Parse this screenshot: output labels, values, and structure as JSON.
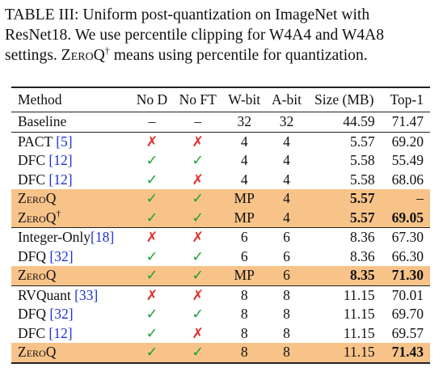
{
  "caption": {
    "label": "TABLE III:",
    "line1_rest": " Uniform post-quantization on ImageNet with",
    "line2": "ResNet18. We use percentile clipping for W4A4 and W4A8",
    "line3_pre": "settings. ",
    "line3_name": "ZeroQ",
    "line3_dagger": "†",
    "line3_post": " means using percentile for quantization."
  },
  "columns": [
    "Method",
    "No D",
    "No FT",
    "W-bit",
    "A-bit",
    "Size (MB)",
    "Top-1"
  ],
  "baseline": {
    "method": "Baseline",
    "nod": "–",
    "noft": "–",
    "w": "32",
    "a": "32",
    "size": "44.59",
    "top1": "71.47"
  },
  "groups": [
    [
      {
        "method": "PACT ",
        "cite": "[5]",
        "nod": "✗",
        "noft": "✗",
        "w": "4",
        "a": "4",
        "size": "5.57",
        "top1": "69.20"
      },
      {
        "method": "DFC ",
        "cite": "[12]",
        "nod": "✓",
        "noft": "✓",
        "w": "4",
        "a": "4",
        "size": "5.58",
        "top1": "55.49"
      },
      {
        "method": "DFC ",
        "cite": "[12]",
        "nod": "✓",
        "noft": "✗",
        "w": "4",
        "a": "4",
        "size": "5.58",
        "top1": "68.06"
      },
      {
        "method": "ZeroQ",
        "dagger": "",
        "hl": true,
        "nod": "✓",
        "noft": "✓",
        "w": "MP",
        "a": "4",
        "size": "5.57",
        "top1": "–",
        "bold_size": true,
        "bold_top1": false
      },
      {
        "method": "ZeroQ",
        "dagger": "†",
        "hl": true,
        "nod": "✓",
        "noft": "✓",
        "w": "MP",
        "a": "4",
        "size": "5.57",
        "top1": "69.05",
        "bold_size": true,
        "bold_top1": true
      }
    ],
    [
      {
        "method": "Integer-Only",
        "cite": "[18]",
        "nod": "✗",
        "noft": "✗",
        "w": "6",
        "a": "6",
        "size": "8.36",
        "top1": "67.30"
      },
      {
        "method": "DFQ ",
        "cite": "[32]",
        "nod": "✓",
        "noft": "✓",
        "w": "6",
        "a": "6",
        "size": "8.36",
        "top1": "66.30"
      },
      {
        "method": "ZeroQ",
        "dagger": "",
        "hl": true,
        "nod": "✓",
        "noft": "✓",
        "w": "MP",
        "a": "6",
        "size": "8.35",
        "top1": "71.30",
        "bold_size": true,
        "bold_top1": true
      }
    ],
    [
      {
        "method": "RVQuant ",
        "cite": "[33]",
        "nod": "✗",
        "noft": "✗",
        "w": "8",
        "a": "8",
        "size": "11.15",
        "top1": "70.01"
      },
      {
        "method": "DFQ ",
        "cite": "[32]",
        "nod": "✓",
        "noft": "✓",
        "w": "8",
        "a": "8",
        "size": "11.15",
        "top1": "69.70"
      },
      {
        "method": "DFC ",
        "cite": "[12]",
        "nod": "✓",
        "noft": "✗",
        "w": "8",
        "a": "8",
        "size": "11.15",
        "top1": "69.57"
      },
      {
        "method": "ZeroQ",
        "dagger": "",
        "hl": true,
        "nod": "✓",
        "noft": "✓",
        "w": "8",
        "a": "8",
        "size": "11.15",
        "top1": "71.43",
        "bold_size": false,
        "bold_top1": true
      }
    ]
  ]
}
